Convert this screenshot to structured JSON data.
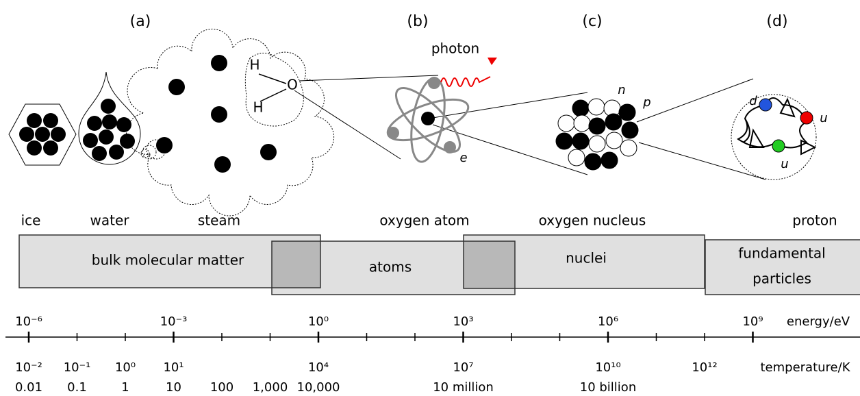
{
  "panels": [
    "(a)",
    "(b)",
    "(c)",
    "(d)"
  ],
  "illustration_labels": {
    "photon": "photon",
    "h_top": "H",
    "o": "O",
    "h_bottom": "H",
    "e": "e",
    "n": "n",
    "p": "p",
    "d": "d",
    "u_red": "u",
    "u_green": "u"
  },
  "objects": [
    "ice",
    "water",
    "steam",
    "oxygen atom",
    "oxygen nucleus",
    "proton"
  ],
  "regimes": [
    [
      "bulk molecular matter"
    ],
    [
      "atoms"
    ],
    [
      "nuclei"
    ],
    [
      "fundamental",
      "particles"
    ]
  ],
  "axis": {
    "energy_ticks": [
      "10⁻⁶",
      "10⁻³",
      "10⁰",
      "10³",
      "10⁶",
      "10⁹"
    ],
    "energy_label": "energy/eV",
    "temperature_ticks": [
      "10⁻²",
      "10⁻¹",
      "10⁰",
      "10¹",
      "10⁴",
      "10⁷",
      "10¹⁰",
      "10¹²"
    ],
    "temperature_label": "temperature/K",
    "temperature_values": [
      "0.01",
      "0.1",
      "1",
      "10",
      "100",
      "1,000",
      "10,000",
      "10 million",
      "10 billion"
    ]
  }
}
